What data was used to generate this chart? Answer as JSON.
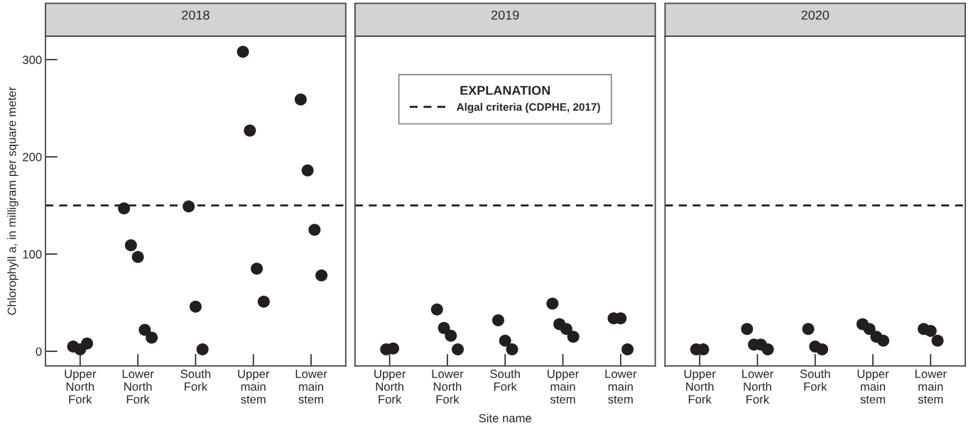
{
  "chart_data": [
    {
      "type": "scatter",
      "title": "2018",
      "ylabel": "Chlorophyll a, in milligram per square meter",
      "categories": [
        "Upper\nNorth\nFork",
        "Lower\nNorth\nFork",
        "South\nFork",
        "Upper\nmain\nstem",
        "Lower\nmain\nstem"
      ],
      "series": [
        {
          "color": "#231f20",
          "x": [
            "Upper\nNorth\nFork",
            "Upper\nNorth\nFork",
            "Upper\nNorth\nFork",
            "Lower\nNorth\nFork",
            "Lower\nNorth\nFork",
            "Lower\nNorth\nFork",
            "Lower\nNorth\nFork",
            "Lower\nNorth\nFork",
            "South\nFork",
            "South\nFork",
            "South\nFork",
            "Upper\nmain\nstem",
            "Upper\nmain\nstem",
            "Upper\nmain\nstem",
            "Upper\nmain\nstem",
            "Lower\nmain\nstem",
            "Lower\nmain\nstem",
            "Lower\nmain\nstem",
            "Lower\nmain\nstem"
          ],
          "values": [
            5,
            2,
            8,
            147,
            109,
            97,
            22,
            14,
            149,
            46,
            2,
            308,
            227,
            85,
            51,
            259,
            186,
            125,
            78
          ]
        }
      ],
      "ylim": [
        -15,
        324
      ],
      "yticks": [
        0,
        100,
        200,
        300
      ],
      "marker": "circle",
      "grid": false,
      "ref_lines": [
        {
          "axis": "y",
          "value": 150,
          "color": "#231f20",
          "line_style": "dashed"
        }
      ]
    },
    {
      "type": "scatter",
      "title": "2019",
      "xlabel": "Site name",
      "legend_title": "EXPLANATION",
      "legend": "top",
      "categories": [
        "Upper\nNorth\nFork",
        "Lower\nNorth\nFork",
        "South\nFork",
        "Upper\nmain\nstem",
        "Lower\nmain\nstem"
      ],
      "series": [
        {
          "color": "#231f20",
          "x": [
            "Upper\nNorth\nFork",
            "Upper\nNorth\nFork",
            "Lower\nNorth\nFork",
            "Lower\nNorth\nFork",
            "Lower\nNorth\nFork",
            "Lower\nNorth\nFork",
            "South\nFork",
            "South\nFork",
            "South\nFork",
            "Upper\nmain\nstem",
            "Upper\nmain\nstem",
            "Upper\nmain\nstem",
            "Upper\nmain\nstem",
            "Lower\nmain\nstem",
            "Lower\nmain\nstem",
            "Lower\nmain\nstem"
          ],
          "values": [
            2,
            3,
            43,
            24,
            16,
            2,
            32,
            11,
            2,
            49,
            28,
            23,
            15,
            34,
            34,
            2
          ]
        }
      ],
      "ylim": [
        -15,
        324
      ],
      "tick_labels": "x",
      "marker": "circle",
      "grid": false,
      "ref_lines": [
        {
          "axis": "y",
          "value": 150,
          "label": "Algal criteria (CDPHE, 2017)",
          "color": "#231f20",
          "line_style": "dashed"
        }
      ]
    },
    {
      "type": "scatter",
      "title": "2020",
      "categories": [
        "Upper\nNorth\nFork",
        "Lower\nNorth\nFork",
        "South\nFork",
        "Upper\nmain\nstem",
        "Lower\nmain\nstem"
      ],
      "series": [
        {
          "color": "#231f20",
          "x": [
            "Upper\nNorth\nFork",
            "Upper\nNorth\nFork",
            "Lower\nNorth\nFork",
            "Lower\nNorth\nFork",
            "Lower\nNorth\nFork",
            "Lower\nNorth\nFork",
            "South\nFork",
            "South\nFork",
            "South\nFork",
            "Upper\nmain\nstem",
            "Upper\nmain\nstem",
            "Upper\nmain\nstem",
            "Upper\nmain\nstem",
            "Lower\nmain\nstem",
            "Lower\nmain\nstem",
            "Lower\nmain\nstem"
          ],
          "values": [
            2,
            2,
            23,
            7,
            7,
            2,
            23,
            5,
            2,
            28,
            23,
            15,
            11,
            23,
            21,
            11
          ]
        }
      ],
      "ylim": [
        -15,
        324
      ],
      "tick_labels": "x",
      "marker": "circle",
      "grid": false,
      "ref_lines": [
        {
          "axis": "y",
          "value": 150,
          "color": "#231f20",
          "line_style": "dashed"
        }
      ]
    }
  ]
}
